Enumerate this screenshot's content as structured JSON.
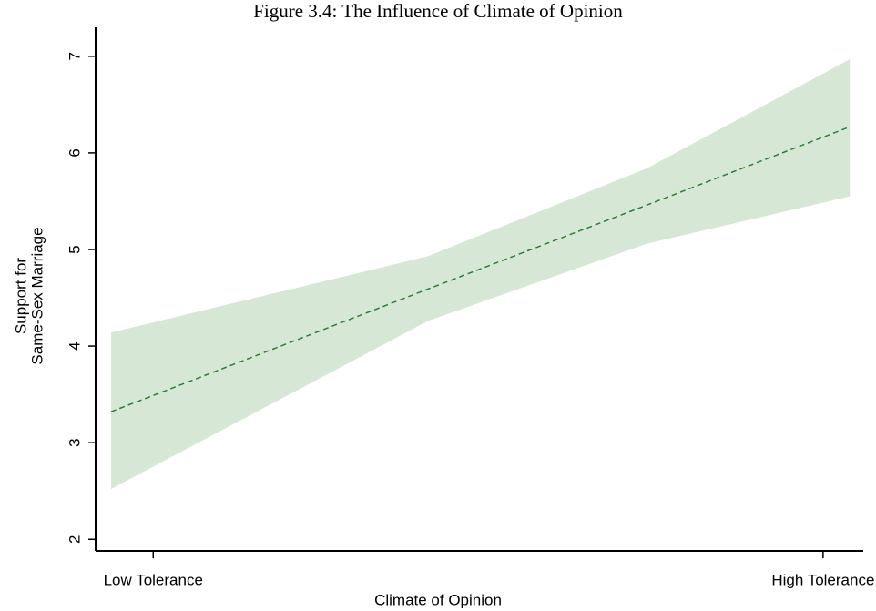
{
  "chart_data": {
    "type": "line",
    "title": "Figure 3.4: The Influence of Climate of Opinion",
    "x_label": "Climate of Opinion",
    "y_label": [
      "Support for",
      "Same-Sex Marriage"
    ],
    "x": [
      -0.063,
      0.41,
      0.737,
      1.04
    ],
    "series": [
      {
        "color": "#2e7d32",
        "dash": true,
        "values": [
          3.32,
          4.59,
          5.46,
          6.27
        ]
      }
    ],
    "band": {
      "color": "#d6e8d5",
      "lower": [
        2.52,
        4.26,
        5.06,
        5.55
      ],
      "upper": [
        4.14,
        4.93,
        5.84,
        6.97
      ]
    },
    "xlim": [
      -0.086,
      1.06
    ],
    "xticks": [
      {
        "value": 0,
        "label": "Low Tolerance"
      },
      {
        "value": 1,
        "label": "High Tolerance"
      }
    ],
    "ylim": [
      1.88,
      7.3
    ],
    "yticks": [
      2,
      3,
      4,
      5,
      6,
      7
    ],
    "grid": false
  }
}
